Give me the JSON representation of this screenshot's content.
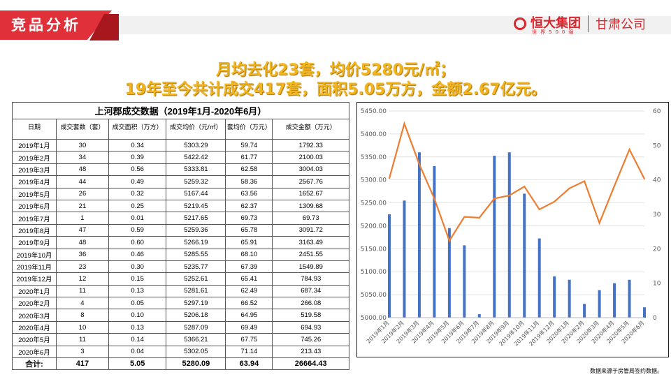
{
  "header": {
    "section": "竞品分析",
    "logo_name": "恒大集团",
    "logo_sub": "世界500强",
    "company": "甘肃公司"
  },
  "headline": [
    "月均去化23套，均价5280元/㎡；",
    "19年至今共计成交417套，面积5.05万方，金额2.67亿元。"
  ],
  "table": {
    "title": "上河郡成交数据（2019年1月-2020年6月）",
    "columns": [
      "日期",
      "成交套数（套）",
      "成交面积（万方）",
      "成交均价（元/㎡）",
      "套均价（万元）",
      "成交金额（万元）"
    ],
    "rows": [
      [
        "2019年1月",
        "30",
        "0.34",
        "5303.29",
        "59.74",
        "1792.33"
      ],
      [
        "2019年2月",
        "34",
        "0.39",
        "5422.42",
        "61.77",
        "2100.03"
      ],
      [
        "2019年3月",
        "48",
        "0.56",
        "5333.81",
        "62.58",
        "3004.03"
      ],
      [
        "2019年4月",
        "44",
        "0.49",
        "5259.32",
        "58.36",
        "2567.76"
      ],
      [
        "2019年5月",
        "26",
        "0.32",
        "5167.44",
        "63.56",
        "1652.67"
      ],
      [
        "2019年6月",
        "21",
        "0.25",
        "5219.45",
        "62.37",
        "1309.68"
      ],
      [
        "2019年7月",
        "1",
        "0.01",
        "5217.65",
        "69.73",
        "69.73"
      ],
      [
        "2019年8月",
        "47",
        "0.59",
        "5259.36",
        "65.78",
        "3091.72"
      ],
      [
        "2019年9月",
        "48",
        "0.60",
        "5266.19",
        "65.91",
        "3163.49"
      ],
      [
        "2019年10月",
        "36",
        "0.46",
        "5285.55",
        "68.10",
        "2451.55"
      ],
      [
        "2019年11月",
        "23",
        "0.30",
        "5235.77",
        "67.39",
        "1549.89"
      ],
      [
        "2019年12月",
        "12",
        "0.15",
        "5252.61",
        "65.41",
        "784.93"
      ],
      [
        "2020年1月",
        "11",
        "0.13",
        "5281.61",
        "62.49",
        "687.34"
      ],
      [
        "2020年2月",
        "4",
        "0.05",
        "5297.19",
        "66.52",
        "266.08"
      ],
      [
        "2020年3月",
        "8",
        "0.10",
        "5206.18",
        "64.95",
        "519.58"
      ],
      [
        "2020年4月",
        "10",
        "0.13",
        "5287.09",
        "69.49",
        "694.93"
      ],
      [
        "2020年5月",
        "11",
        "0.14",
        "5366.21",
        "67.75",
        "745.26"
      ],
      [
        "2020年6月",
        "3",
        "0.04",
        "5302.05",
        "71.14",
        "213.43"
      ]
    ],
    "total": [
      "合计:",
      "417",
      "5.05",
      "5280.09",
      "63.94",
      "26664.43"
    ]
  },
  "chart_data": {
    "type": "bar+line",
    "categories": [
      "2019年1月",
      "2019年2月",
      "2019年3月",
      "2019年4月",
      "2019年5月",
      "2019年6月",
      "2019年7月",
      "2019年8月",
      "2019年9月",
      "2019年10月",
      "2019年11月",
      "2019年12月",
      "2020年1月",
      "2020年2月",
      "2020年3月",
      "2020年4月",
      "2020年5月",
      "2020年6月"
    ],
    "series": [
      {
        "type": "bar",
        "axis": "right",
        "color": "#4472c4",
        "values": [
          30,
          34,
          48,
          44,
          26,
          21,
          1,
          47,
          48,
          36,
          23,
          12,
          11,
          4,
          8,
          10,
          11,
          3
        ]
      },
      {
        "type": "line",
        "axis": "left",
        "color": "#ed7d31",
        "values": [
          5303.29,
          5422.42,
          5333.81,
          5259.32,
          5167.44,
          5219.45,
          5217.65,
          5259.36,
          5266.19,
          5285.55,
          5235.77,
          5252.61,
          5281.61,
          5297.19,
          5206.18,
          5287.09,
          5366.21,
          5302.05
        ]
      }
    ],
    "ylim_left": [
      5000,
      5450
    ],
    "yticks_left": [
      "5000.00",
      "5050.00",
      "5100.00",
      "5150.00",
      "5200.00",
      "5250.00",
      "5300.00",
      "5350.00",
      "5400.00",
      "5450.00"
    ],
    "ylim_right": [
      0,
      60
    ],
    "yticks_right": [
      "0",
      "10",
      "20",
      "30",
      "40",
      "50",
      "60"
    ],
    "grid": true
  },
  "note": "数据来源于房管局签约数据。"
}
